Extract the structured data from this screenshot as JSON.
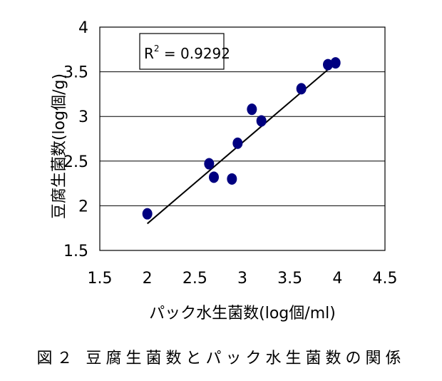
{
  "caption": "図２ 豆腐生菌数とパック水生菌数の関係",
  "chart_data": {
    "type": "scatter",
    "xlabel": "パック水生菌数(log個/ml)",
    "ylabel": "豆腐生菌数(log個/g)",
    "xlim": [
      1.5,
      4.5
    ],
    "ylim": [
      1.5,
      4
    ],
    "x_ticks": [
      1.5,
      2,
      2.5,
      3,
      3.5,
      4,
      4.5
    ],
    "y_ticks": [
      1.5,
      2,
      2.5,
      3,
      3.5,
      4
    ],
    "x_tick_labels": [
      "1.5",
      "2",
      "2.5",
      "3",
      "3.5",
      "4",
      "4.5"
    ],
    "y_tick_labels": [
      "1.5",
      "2",
      "2.5",
      "3",
      "3.5",
      "4"
    ],
    "grid": "horizontal",
    "points": [
      {
        "x": 2.0,
        "y": 1.91
      },
      {
        "x": 2.65,
        "y": 2.47
      },
      {
        "x": 2.7,
        "y": 2.32
      },
      {
        "x": 2.89,
        "y": 2.3
      },
      {
        "x": 2.95,
        "y": 2.7
      },
      {
        "x": 3.1,
        "y": 3.08
      },
      {
        "x": 3.2,
        "y": 2.95
      },
      {
        "x": 3.62,
        "y": 3.31
      },
      {
        "x": 3.9,
        "y": 3.58
      },
      {
        "x": 3.98,
        "y": 3.6
      }
    ],
    "trendline": {
      "x1": 2.0,
      "y1": 1.8,
      "x2": 3.95,
      "y2": 3.57
    },
    "r2_label": "R",
    "r2_sup": "2",
    "r2_value": " = 0.9292",
    "colors": {
      "point": "#000080",
      "line": "#000000",
      "grid": "#000000"
    }
  }
}
